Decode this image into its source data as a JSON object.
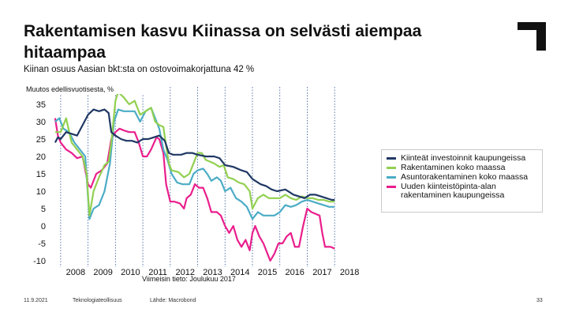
{
  "slide": {
    "title": "Rakentamisen kasvu Kiinassa on selvästi aiempaa hitaampaa",
    "subtitle": "Kiinan osuus Aasian bkt:sta on ostovoimakorjattuna 42 %",
    "footer_date": "11.9.2021",
    "footer_org": "Teknologiateollisuus",
    "footer_source": "Lähde: Macrobond",
    "page_number": "33"
  },
  "colors": {
    "series1": "#1f3864",
    "series2": "#92d050",
    "series3": "#4bacc6",
    "series4": "#e91e8c",
    "logo": "#111111"
  },
  "icons": {
    "logo": "corner-bracket-logo"
  },
  "chart_data": {
    "type": "line",
    "ylabel": "Muutos edellisvuotisesta, %",
    "note": "Viimeisin tieto: Joulukuu 2017",
    "ylim": [
      -10,
      40
    ],
    "xlim": [
      2007.6,
      2018.6
    ],
    "yticks": [
      -10,
      -5,
      0,
      5,
      10,
      15,
      20,
      25,
      30,
      35,
      40
    ],
    "xticks": [
      2008,
      2009,
      2010,
      2011,
      2012,
      2013,
      2014,
      2015,
      2016,
      2017,
      2018
    ],
    "xtick_labels": [
      "2008",
      "2009",
      "2010",
      "2011",
      "2012",
      "2013",
      "2014",
      "2015",
      "2016",
      "2017",
      "2018"
    ],
    "grid": "vertical dotted at year starts",
    "legend_position": "right",
    "series": [
      {
        "name": "Kiinteät investoinnit kaupungeissa",
        "points": [
          [
            2007.8,
            24
          ],
          [
            2007.9,
            25.5
          ],
          [
            2008.0,
            25
          ],
          [
            2008.2,
            27
          ],
          [
            2008.4,
            26.5
          ],
          [
            2008.6,
            26
          ],
          [
            2008.8,
            29
          ],
          [
            2009.0,
            32
          ],
          [
            2009.2,
            33.5
          ],
          [
            2009.4,
            33
          ],
          [
            2009.6,
            33.5
          ],
          [
            2009.75,
            32.5
          ],
          [
            2009.85,
            27
          ],
          [
            2010.0,
            26
          ],
          [
            2010.2,
            25
          ],
          [
            2010.4,
            24.5
          ],
          [
            2010.6,
            24.5
          ],
          [
            2010.8,
            24
          ],
          [
            2011.0,
            25
          ],
          [
            2011.2,
            25
          ],
          [
            2011.4,
            25.5
          ],
          [
            2011.6,
            26
          ],
          [
            2011.8,
            24.5
          ],
          [
            2011.95,
            21
          ],
          [
            2012.1,
            20.5
          ],
          [
            2012.4,
            20.5
          ],
          [
            2012.6,
            21
          ],
          [
            2012.8,
            21
          ],
          [
            2013.0,
            20.5
          ],
          [
            2013.3,
            20
          ],
          [
            2013.6,
            20
          ],
          [
            2013.8,
            19.5
          ],
          [
            2014.0,
            17.5
          ],
          [
            2014.3,
            17
          ],
          [
            2014.6,
            16
          ],
          [
            2014.8,
            15.5
          ],
          [
            2015.0,
            13.5
          ],
          [
            2015.3,
            12
          ],
          [
            2015.5,
            11.5
          ],
          [
            2015.7,
            10.5
          ],
          [
            2015.9,
            10
          ],
          [
            2016.2,
            10.5
          ],
          [
            2016.5,
            9
          ],
          [
            2016.7,
            8.5
          ],
          [
            2016.9,
            8
          ],
          [
            2017.1,
            9
          ],
          [
            2017.3,
            9
          ],
          [
            2017.5,
            8.5
          ],
          [
            2017.7,
            8
          ],
          [
            2017.9,
            7.5
          ],
          [
            2018.0,
            7.5
          ]
        ]
      },
      {
        "name": "Rakentaminen koko maassa",
        "points": [
          [
            2007.8,
            27
          ],
          [
            2008.0,
            27
          ],
          [
            2008.2,
            31
          ],
          [
            2008.4,
            24
          ],
          [
            2008.6,
            22
          ],
          [
            2008.8,
            20
          ],
          [
            2008.95,
            15
          ],
          [
            2009.05,
            3
          ],
          [
            2009.2,
            10
          ],
          [
            2009.4,
            14
          ],
          [
            2009.6,
            17.5
          ],
          [
            2009.75,
            18.5
          ],
          [
            2009.85,
            24
          ],
          [
            2010.0,
            36
          ],
          [
            2010.1,
            38.5
          ],
          [
            2010.3,
            37
          ],
          [
            2010.5,
            35
          ],
          [
            2010.7,
            36
          ],
          [
            2010.9,
            32
          ],
          [
            2011.1,
            33
          ],
          [
            2011.3,
            34
          ],
          [
            2011.45,
            30
          ],
          [
            2011.6,
            29
          ],
          [
            2011.75,
            28.5
          ],
          [
            2011.85,
            23
          ],
          [
            2011.95,
            18
          ],
          [
            2012.05,
            16
          ],
          [
            2012.3,
            15.5
          ],
          [
            2012.5,
            14
          ],
          [
            2012.7,
            15
          ],
          [
            2012.85,
            18
          ],
          [
            2013.0,
            21
          ],
          [
            2013.15,
            21
          ],
          [
            2013.3,
            19
          ],
          [
            2013.45,
            18.5
          ],
          [
            2013.6,
            18
          ],
          [
            2013.8,
            17
          ],
          [
            2013.95,
            17.5
          ],
          [
            2014.1,
            14
          ],
          [
            2014.3,
            13.5
          ],
          [
            2014.5,
            12.5
          ],
          [
            2014.7,
            12
          ],
          [
            2014.9,
            10
          ],
          [
            2015.0,
            5
          ],
          [
            2015.2,
            8
          ],
          [
            2015.4,
            9
          ],
          [
            2015.6,
            8
          ],
          [
            2015.8,
            8
          ],
          [
            2016.0,
            8
          ],
          [
            2016.2,
            9
          ],
          [
            2016.4,
            8
          ],
          [
            2016.6,
            7.5
          ],
          [
            2016.8,
            8.5
          ],
          [
            2017.0,
            8
          ],
          [
            2017.2,
            8
          ],
          [
            2017.4,
            7.5
          ],
          [
            2017.6,
            7.5
          ],
          [
            2017.8,
            7
          ],
          [
            2018.0,
            7
          ]
        ]
      },
      {
        "name": "Asuntorakentaminen koko maassa",
        "points": [
          [
            2007.8,
            30
          ],
          [
            2007.95,
            31
          ],
          [
            2008.1,
            28
          ],
          [
            2008.3,
            27
          ],
          [
            2008.5,
            24
          ],
          [
            2008.7,
            22
          ],
          [
            2008.9,
            20
          ],
          [
            2009.05,
            2
          ],
          [
            2009.2,
            5
          ],
          [
            2009.4,
            6
          ],
          [
            2009.6,
            10
          ],
          [
            2009.8,
            18
          ],
          [
            2009.95,
            30
          ],
          [
            2010.1,
            33.5
          ],
          [
            2010.3,
            33
          ],
          [
            2010.5,
            33
          ],
          [
            2010.7,
            33
          ],
          [
            2010.9,
            30
          ],
          [
            2011.1,
            33
          ],
          [
            2011.3,
            34
          ],
          [
            2011.45,
            31
          ],
          [
            2011.6,
            28
          ],
          [
            2011.75,
            22
          ],
          [
            2011.9,
            19
          ],
          [
            2012.05,
            15
          ],
          [
            2012.25,
            12.5
          ],
          [
            2012.45,
            12
          ],
          [
            2012.7,
            12
          ],
          [
            2012.85,
            15
          ],
          [
            2013.0,
            16
          ],
          [
            2013.2,
            16.5
          ],
          [
            2013.35,
            15
          ],
          [
            2013.5,
            13
          ],
          [
            2013.7,
            14
          ],
          [
            2013.85,
            13
          ],
          [
            2014.0,
            10
          ],
          [
            2014.2,
            11
          ],
          [
            2014.4,
            8
          ],
          [
            2014.6,
            7
          ],
          [
            2014.8,
            5.5
          ],
          [
            2015.0,
            2
          ],
          [
            2015.2,
            4
          ],
          [
            2015.4,
            3
          ],
          [
            2015.6,
            3
          ],
          [
            2015.8,
            3
          ],
          [
            2016.0,
            4
          ],
          [
            2016.2,
            6
          ],
          [
            2016.4,
            5.5
          ],
          [
            2016.6,
            6
          ],
          [
            2016.8,
            7
          ],
          [
            2017.0,
            7.5
          ],
          [
            2017.2,
            7
          ],
          [
            2017.4,
            6.5
          ],
          [
            2017.6,
            6
          ],
          [
            2017.8,
            5.5
          ],
          [
            2018.0,
            5.5
          ]
        ]
      },
      {
        "name": "Uuden kiinteistöpinta-alan rakentaminen kaupungeissa",
        "points": [
          [
            2007.8,
            31
          ],
          [
            2007.9,
            26
          ],
          [
            2008.0,
            24
          ],
          [
            2008.2,
            22
          ],
          [
            2008.4,
            21
          ],
          [
            2008.6,
            19.5
          ],
          [
            2008.8,
            20
          ],
          [
            2009.0,
            12
          ],
          [
            2009.1,
            11
          ],
          [
            2009.3,
            15
          ],
          [
            2009.5,
            16
          ],
          [
            2009.7,
            18
          ],
          [
            2009.85,
            25
          ],
          [
            2010.0,
            27
          ],
          [
            2010.15,
            28
          ],
          [
            2010.3,
            27.5
          ],
          [
            2010.5,
            27
          ],
          [
            2010.7,
            27
          ],
          [
            2010.85,
            24
          ],
          [
            2011.0,
            20
          ],
          [
            2011.15,
            20
          ],
          [
            2011.3,
            22
          ],
          [
            2011.5,
            25.5
          ],
          [
            2011.6,
            25
          ],
          [
            2011.75,
            21
          ],
          [
            2011.85,
            12
          ],
          [
            2012.0,
            7
          ],
          [
            2012.15,
            7
          ],
          [
            2012.35,
            6.5
          ],
          [
            2012.5,
            5
          ],
          [
            2012.6,
            8
          ],
          [
            2012.75,
            9
          ],
          [
            2012.9,
            12
          ],
          [
            2013.05,
            11
          ],
          [
            2013.2,
            11
          ],
          [
            2013.35,
            8
          ],
          [
            2013.5,
            4
          ],
          [
            2013.7,
            4
          ],
          [
            2013.85,
            3
          ],
          [
            2014.0,
            0
          ],
          [
            2014.15,
            -2
          ],
          [
            2014.3,
            0
          ],
          [
            2014.45,
            -4
          ],
          [
            2014.6,
            -6
          ],
          [
            2014.75,
            -4
          ],
          [
            2014.9,
            -7
          ],
          [
            2015.0,
            -2
          ],
          [
            2015.1,
            0
          ],
          [
            2015.25,
            -3
          ],
          [
            2015.4,
            -5
          ],
          [
            2015.55,
            -8
          ],
          [
            2015.65,
            -10
          ],
          [
            2015.8,
            -8
          ],
          [
            2015.95,
            -5
          ],
          [
            2016.1,
            -5
          ],
          [
            2016.25,
            -3
          ],
          [
            2016.4,
            -2
          ],
          [
            2016.55,
            -6
          ],
          [
            2016.7,
            -6
          ],
          [
            2016.85,
            0
          ],
          [
            2017.0,
            5
          ],
          [
            2017.15,
            4
          ],
          [
            2017.3,
            3.5
          ],
          [
            2017.45,
            3
          ],
          [
            2017.55,
            -2
          ],
          [
            2017.65,
            -6
          ],
          [
            2017.85,
            -6
          ],
          [
            2018.0,
            -6.5
          ]
        ]
      }
    ]
  }
}
